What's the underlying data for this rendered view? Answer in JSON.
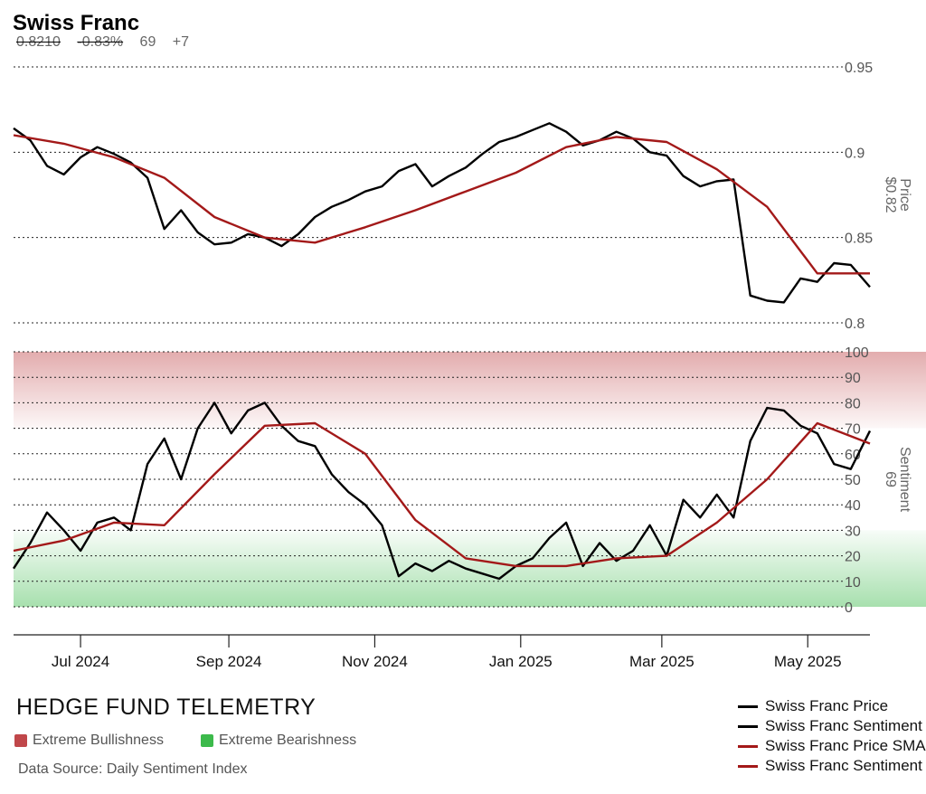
{
  "header": {
    "title": "Swiss Franc",
    "last_price": "0.8210",
    "change_pct": "-0.83%",
    "sentiment": "69",
    "sentiment_change": "+7"
  },
  "footer": {
    "brand": "HEDGE FUND TELEMETRY",
    "zone_legend": [
      {
        "label": "Extreme Bullishness",
        "color": "#c0474a"
      },
      {
        "label": "Extreme Bearishness",
        "color": "#3cba4b"
      }
    ],
    "source": "Data Source: Daily Sentiment Index"
  },
  "chart_data": {
    "type": "line",
    "x_tick_labels": [
      "Jul 2024",
      "Sep 2024",
      "Nov 2024",
      "Jan 2025",
      "Mar 2025",
      "May 2025"
    ],
    "x_ticks": [
      "2024-07-01",
      "2024-09-01",
      "2024-11-01",
      "2025-01-01",
      "2025-03-01",
      "2025-05-01"
    ],
    "x_range": [
      "2024-06-03",
      "2025-05-27"
    ],
    "panels": [
      {
        "name": "price",
        "axis_label": "Price",
        "axis_value": "$0.82",
        "ylim": [
          0.8,
          0.95
        ],
        "yticks": [
          0.8,
          0.85,
          0.9,
          0.95
        ],
        "series": [
          {
            "name": "Swiss Franc Price",
            "color": "#000000",
            "x": [
              "2024-06-03",
              "2024-06-10",
              "2024-06-17",
              "2024-06-24",
              "2024-07-01",
              "2024-07-08",
              "2024-07-15",
              "2024-07-22",
              "2024-07-29",
              "2024-08-05",
              "2024-08-12",
              "2024-08-19",
              "2024-08-26",
              "2024-09-02",
              "2024-09-09",
              "2024-09-16",
              "2024-09-23",
              "2024-09-30",
              "2024-10-07",
              "2024-10-14",
              "2024-10-21",
              "2024-10-28",
              "2024-11-04",
              "2024-11-11",
              "2024-11-18",
              "2024-11-25",
              "2024-12-02",
              "2024-12-09",
              "2024-12-16",
              "2024-12-23",
              "2024-12-30",
              "2025-01-06",
              "2025-01-13",
              "2025-01-20",
              "2025-01-27",
              "2025-02-03",
              "2025-02-10",
              "2025-02-17",
              "2025-02-24",
              "2025-03-03",
              "2025-03-10",
              "2025-03-17",
              "2025-03-24",
              "2025-03-31",
              "2025-04-07",
              "2025-04-14",
              "2025-04-21",
              "2025-04-28",
              "2025-05-05",
              "2025-05-12",
              "2025-05-19",
              "2025-05-27"
            ],
            "values": [
              0.914,
              0.907,
              0.892,
              0.887,
              0.897,
              0.903,
              0.899,
              0.894,
              0.885,
              0.855,
              0.866,
              0.853,
              0.846,
              0.847,
              0.852,
              0.85,
              0.845,
              0.852,
              0.862,
              0.868,
              0.872,
              0.877,
              0.88,
              0.889,
              0.893,
              0.88,
              0.886,
              0.891,
              0.899,
              0.906,
              0.909,
              0.913,
              0.917,
              0.912,
              0.904,
              0.907,
              0.912,
              0.908,
              0.9,
              0.898,
              0.886,
              0.88,
              0.883,
              0.884,
              0.816,
              0.813,
              0.812,
              0.826,
              0.824,
              0.835,
              0.834,
              0.821
            ]
          },
          {
            "name": "Swiss Franc Price SMA",
            "color": "#a31919",
            "x": [
              "2024-06-03",
              "2024-06-24",
              "2024-07-15",
              "2024-08-05",
              "2024-08-26",
              "2024-09-16",
              "2024-10-07",
              "2024-10-28",
              "2024-11-18",
              "2024-12-09",
              "2024-12-30",
              "2025-01-20",
              "2025-02-10",
              "2025-03-03",
              "2025-03-24",
              "2025-04-14",
              "2025-05-05",
              "2025-05-27"
            ],
            "values": [
              0.91,
              0.905,
              0.897,
              0.885,
              0.862,
              0.85,
              0.847,
              0.856,
              0.866,
              0.877,
              0.888,
              0.903,
              0.909,
              0.906,
              0.89,
              0.868,
              0.829,
              0.829
            ]
          }
        ]
      },
      {
        "name": "sentiment",
        "axis_label": "Sentiment",
        "axis_value": "69",
        "ylim": [
          0,
          100
        ],
        "yticks": [
          0,
          10,
          20,
          30,
          40,
          50,
          60,
          70,
          80,
          90,
          100
        ],
        "zones": [
          {
            "label": "Extreme Bullishness",
            "range": [
              70,
              100
            ],
            "color": "#c0474a"
          },
          {
            "label": "Extreme Bearishness",
            "range": [
              0,
              30
            ],
            "color": "#3cba4b"
          }
        ],
        "series": [
          {
            "name": "Swiss Franc Sentiment",
            "color": "#000000",
            "x": [
              "2024-06-03",
              "2024-06-10",
              "2024-06-17",
              "2024-06-24",
              "2024-07-01",
              "2024-07-08",
              "2024-07-15",
              "2024-07-22",
              "2024-07-29",
              "2024-08-05",
              "2024-08-12",
              "2024-08-19",
              "2024-08-26",
              "2024-09-02",
              "2024-09-09",
              "2024-09-16",
              "2024-09-23",
              "2024-09-30",
              "2024-10-07",
              "2024-10-14",
              "2024-10-21",
              "2024-10-28",
              "2024-11-04",
              "2024-11-11",
              "2024-11-18",
              "2024-11-25",
              "2024-12-02",
              "2024-12-09",
              "2024-12-16",
              "2024-12-23",
              "2024-12-30",
              "2025-01-06",
              "2025-01-13",
              "2025-01-20",
              "2025-01-27",
              "2025-02-03",
              "2025-02-10",
              "2025-02-17",
              "2025-02-24",
              "2025-03-03",
              "2025-03-10",
              "2025-03-17",
              "2025-03-24",
              "2025-03-31",
              "2025-04-07",
              "2025-04-14",
              "2025-04-21",
              "2025-04-28",
              "2025-05-05",
              "2025-05-12",
              "2025-05-19",
              "2025-05-27"
            ],
            "values": [
              15,
              25,
              37,
              30,
              22,
              33,
              35,
              30,
              56,
              66,
              50,
              70,
              80,
              68,
              77,
              80,
              71,
              65,
              63,
              52,
              45,
              40,
              32,
              12,
              17,
              14,
              18,
              15,
              13,
              11,
              16,
              19,
              27,
              33,
              16,
              25,
              18,
              22,
              32,
              20,
              42,
              35,
              44,
              35,
              65,
              78,
              77,
              71,
              68,
              56,
              54,
              69
            ]
          },
          {
            "name": "Swiss Franc Sentiment SMA",
            "color": "#a31919",
            "x": [
              "2024-06-03",
              "2024-06-24",
              "2024-07-15",
              "2024-08-05",
              "2024-08-26",
              "2024-09-16",
              "2024-10-07",
              "2024-10-28",
              "2024-11-18",
              "2024-12-09",
              "2024-12-30",
              "2025-01-20",
              "2025-02-10",
              "2025-03-03",
              "2025-03-24",
              "2025-04-14",
              "2025-05-05",
              "2025-05-27"
            ],
            "values": [
              22,
              26,
              33,
              32,
              52,
              71,
              72,
              60,
              34,
              19,
              16,
              16,
              19,
              20,
              33,
              50,
              72,
              64
            ]
          }
        ]
      }
    ],
    "legend": {
      "position": "bottom-right",
      "entries": [
        "Swiss Franc Price",
        "Swiss Franc Sentiment",
        "Swiss Franc Price SMA",
        "Swiss Franc Sentiment SMA"
      ]
    },
    "grid": "horizontal dotted"
  }
}
